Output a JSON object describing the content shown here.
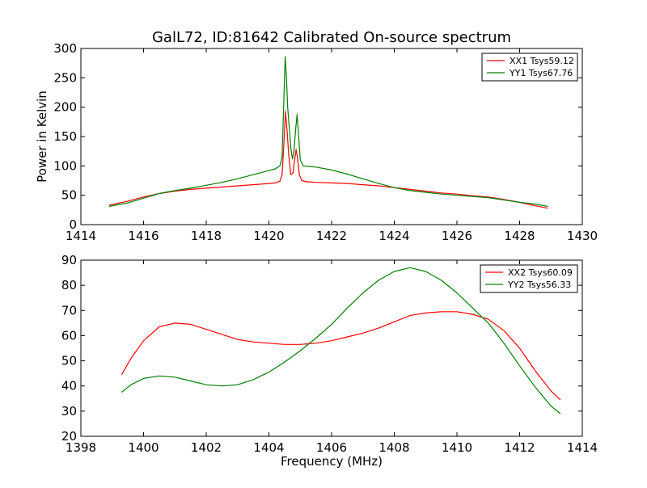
{
  "title": "GalL72, ID:81642 Calibrated On-source spectrum",
  "colors": {
    "red": "#ff0000",
    "green": "#008000"
  },
  "chart_data": [
    {
      "type": "line",
      "title": "GalL72, ID:81642 Calibrated On-source spectrum",
      "xlabel": "",
      "ylabel": "Power in Kelvin",
      "xlim": [
        1414,
        1430
      ],
      "ylim": [
        0,
        300
      ],
      "xticks": [
        "1414",
        "1416",
        "1418",
        "1420",
        "1422",
        "1424",
        "1426",
        "1428",
        "1430"
      ],
      "yticks": [
        "0",
        "50",
        "100",
        "150",
        "200",
        "250",
        "300"
      ],
      "legend": "top-right",
      "series": [
        {
          "name": "XX1 Tsys59.12",
          "color": "#ff0000",
          "x": [
            1414.9,
            1415.5,
            1416.0,
            1416.5,
            1417.0,
            1417.5,
            1418.0,
            1418.5,
            1419.0,
            1419.5,
            1420.0,
            1420.2,
            1420.35,
            1420.42,
            1420.48,
            1420.53,
            1420.58,
            1420.63,
            1420.7,
            1420.77,
            1420.82,
            1420.87,
            1420.92,
            1420.97,
            1421.05,
            1421.2,
            1421.5,
            1422.0,
            1422.5,
            1423.0,
            1423.5,
            1424.0,
            1424.5,
            1425.0,
            1425.5,
            1426.0,
            1426.5,
            1427.0,
            1427.5,
            1428.0,
            1428.5,
            1428.9
          ],
          "y": [
            33,
            40,
            47,
            53,
            57,
            60,
            62,
            64,
            66,
            68,
            70,
            71,
            74,
            85,
            140,
            193,
            160,
            120,
            85,
            88,
            110,
            128,
            110,
            85,
            75,
            73,
            72,
            71,
            70,
            68,
            66,
            63,
            60,
            57,
            54,
            52,
            49,
            47,
            43,
            38,
            32,
            28
          ]
        },
        {
          "name": "YY1 Tsys67.76",
          "color": "#008000",
          "x": [
            1414.9,
            1415.5,
            1416.0,
            1416.5,
            1417.0,
            1417.5,
            1418.0,
            1418.5,
            1419.0,
            1419.5,
            1420.0,
            1420.2,
            1420.35,
            1420.42,
            1420.47,
            1420.52,
            1420.56,
            1420.6,
            1420.65,
            1420.7,
            1420.75,
            1420.8,
            1420.85,
            1420.9,
            1420.95,
            1421.0,
            1421.1,
            1421.3,
            1421.5,
            1422.0,
            1422.5,
            1423.0,
            1423.5,
            1424.0,
            1424.5,
            1425.0,
            1425.5,
            1426.0,
            1426.5,
            1427.0,
            1427.5,
            1428.0,
            1428.5,
            1428.9
          ],
          "y": [
            31,
            37,
            45,
            53,
            58,
            62,
            67,
            72,
            78,
            85,
            92,
            95,
            100,
            115,
            200,
            286,
            250,
            200,
            165,
            130,
            112,
            125,
            160,
            188,
            150,
            110,
            100,
            99,
            98,
            93,
            86,
            78,
            70,
            63,
            58,
            55,
            52,
            50,
            48,
            46,
            42,
            38,
            35,
            31
          ]
        }
      ]
    },
    {
      "type": "line",
      "title": "",
      "xlabel": "Frequency (MHz)",
      "ylabel": "",
      "xlim": [
        1398,
        1414
      ],
      "ylim": [
        20,
        90
      ],
      "xticks": [
        "1398",
        "1400",
        "1402",
        "1404",
        "1406",
        "1408",
        "1410",
        "1412",
        "1414"
      ],
      "yticks": [
        "20",
        "30",
        "40",
        "50",
        "60",
        "70",
        "80",
        "90"
      ],
      "legend": "top-right",
      "series": [
        {
          "name": "XX2 Tsys60.09",
          "color": "#ff0000",
          "x": [
            1399.3,
            1399.6,
            1400.0,
            1400.5,
            1401.0,
            1401.5,
            1402.0,
            1402.5,
            1403.0,
            1403.5,
            1404.0,
            1404.5,
            1405.0,
            1405.5,
            1406.0,
            1406.5,
            1407.0,
            1407.5,
            1408.0,
            1408.5,
            1409.0,
            1409.5,
            1410.0,
            1410.5,
            1411.0,
            1411.5,
            1412.0,
            1412.5,
            1413.0,
            1413.3
          ],
          "y": [
            44.5,
            51,
            58,
            63.5,
            65,
            64.5,
            62.5,
            60.5,
            58.5,
            57.5,
            57,
            56.5,
            56.5,
            57,
            58,
            59.5,
            61,
            63,
            65.5,
            68,
            69,
            69.5,
            69.5,
            68.5,
            66.5,
            62,
            55,
            46,
            38,
            34.5
          ]
        },
        {
          "name": "YY2 Tsys56.33",
          "color": "#008000",
          "x": [
            1399.3,
            1399.6,
            1400.0,
            1400.5,
            1401.0,
            1401.5,
            1402.0,
            1402.5,
            1403.0,
            1403.5,
            1404.0,
            1404.5,
            1405.0,
            1405.5,
            1406.0,
            1406.5,
            1407.0,
            1407.5,
            1408.0,
            1408.5,
            1409.0,
            1409.5,
            1410.0,
            1410.5,
            1411.0,
            1411.5,
            1412.0,
            1412.5,
            1413.0,
            1413.3
          ],
          "y": [
            37.5,
            40.5,
            43,
            44,
            43.5,
            42,
            40.5,
            40,
            40.5,
            42.5,
            45.5,
            49.5,
            54,
            59,
            64.5,
            71,
            77,
            82,
            85.5,
            87,
            85.5,
            82,
            77,
            71,
            65,
            57,
            48,
            39.5,
            32,
            29
          ]
        }
      ]
    }
  ]
}
